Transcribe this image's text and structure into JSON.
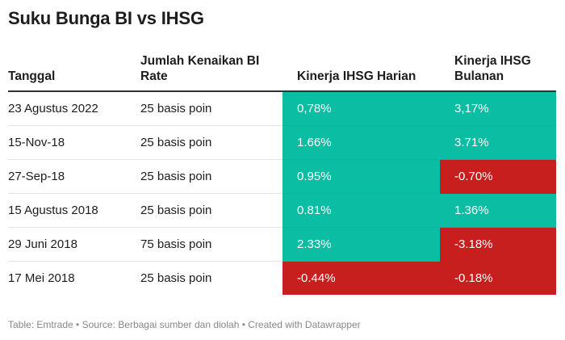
{
  "title": "Suku Bunga BI vs IHSG",
  "chart_data": {
    "type": "table",
    "columns": [
      "Tanggal",
      "Jumlah Kenaikan BI Rate",
      "Kinerja IHSG Harian",
      "Kinerja IHSG Bulanan"
    ],
    "rows": [
      {
        "tanggal": "23 Agustus 2022",
        "kenaikan": "25 basis poin",
        "harian": "0,78%",
        "bulanan": "3,17%",
        "harian_value": 0.78,
        "bulanan_value": 3.17
      },
      {
        "tanggal": "15-Nov-18",
        "kenaikan": "25 basis poin",
        "harian": "1.66%",
        "bulanan": "3.71%",
        "harian_value": 1.66,
        "bulanan_value": 3.71
      },
      {
        "tanggal": "27-Sep-18",
        "kenaikan": "25 basis poin",
        "harian": "0.95%",
        "bulanan": "-0.70%",
        "harian_value": 0.95,
        "bulanan_value": -0.7
      },
      {
        "tanggal": "15 Agustus 2018",
        "kenaikan": "25 basis poin",
        "harian": "0.81%",
        "bulanan": "1.36%",
        "harian_value": 0.81,
        "bulanan_value": 1.36
      },
      {
        "tanggal": "29 Juni 2018",
        "kenaikan": "75 basis poin",
        "harian": "2.33%",
        "bulanan": "-3.18%",
        "harian_value": 2.33,
        "bulanan_value": -3.18
      },
      {
        "tanggal": "17 Mei 2018",
        "kenaikan": "25 basis poin",
        "harian": "-0.44%",
        "bulanan": "-0.18%",
        "harian_value": -0.44,
        "bulanan_value": -0.18
      }
    ],
    "colors": {
      "positive": "#0bbda2",
      "negative": "#c71e1e"
    }
  },
  "footer": "Table: Emtrade • Source: Berbagai sumber dan diolah • Created with Datawrapper"
}
